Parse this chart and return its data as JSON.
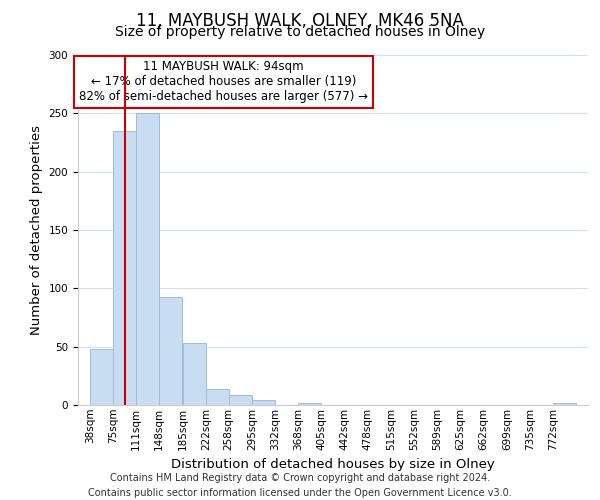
{
  "title": "11, MAYBUSH WALK, OLNEY, MK46 5NA",
  "subtitle": "Size of property relative to detached houses in Olney",
  "xlabel": "Distribution of detached houses by size in Olney",
  "ylabel": "Number of detached properties",
  "bin_labels": [
    "38sqm",
    "75sqm",
    "111sqm",
    "148sqm",
    "185sqm",
    "222sqm",
    "258sqm",
    "295sqm",
    "332sqm",
    "368sqm",
    "405sqm",
    "442sqm",
    "478sqm",
    "515sqm",
    "552sqm",
    "589sqm",
    "625sqm",
    "662sqm",
    "699sqm",
    "735sqm",
    "772sqm"
  ],
  "bin_edges": [
    38,
    75,
    111,
    148,
    185,
    222,
    258,
    295,
    332,
    368,
    405,
    442,
    478,
    515,
    552,
    589,
    625,
    662,
    699,
    735,
    772
  ],
  "bar_heights": [
    48,
    235,
    250,
    93,
    53,
    14,
    9,
    4,
    0,
    2,
    0,
    0,
    0,
    0,
    0,
    0,
    0,
    0,
    0,
    0,
    2
  ],
  "bar_color": "#c8ddf2",
  "bar_edgecolor": "#a0bcd8",
  "property_line_x": 94,
  "property_line_color": "#cc0000",
  "annotation_title": "11 MAYBUSH WALK: 94sqm",
  "annotation_line1": "← 17% of detached houses are smaller (119)",
  "annotation_line2": "82% of semi-detached houses are larger (577) →",
  "annotation_box_color": "#ffffff",
  "annotation_box_edgecolor": "#cc0000",
  "ylim": [
    0,
    300
  ],
  "yticks": [
    0,
    50,
    100,
    150,
    200,
    250,
    300
  ],
  "footer_line1": "Contains HM Land Registry data © Crown copyright and database right 2024.",
  "footer_line2": "Contains public sector information licensed under the Open Government Licence v3.0.",
  "background_color": "#ffffff",
  "grid_color": "#d0e0f0",
  "title_fontsize": 12,
  "subtitle_fontsize": 10,
  "axis_label_fontsize": 9.5,
  "tick_fontsize": 7.5,
  "annotation_fontsize": 8.5,
  "footer_fontsize": 7
}
